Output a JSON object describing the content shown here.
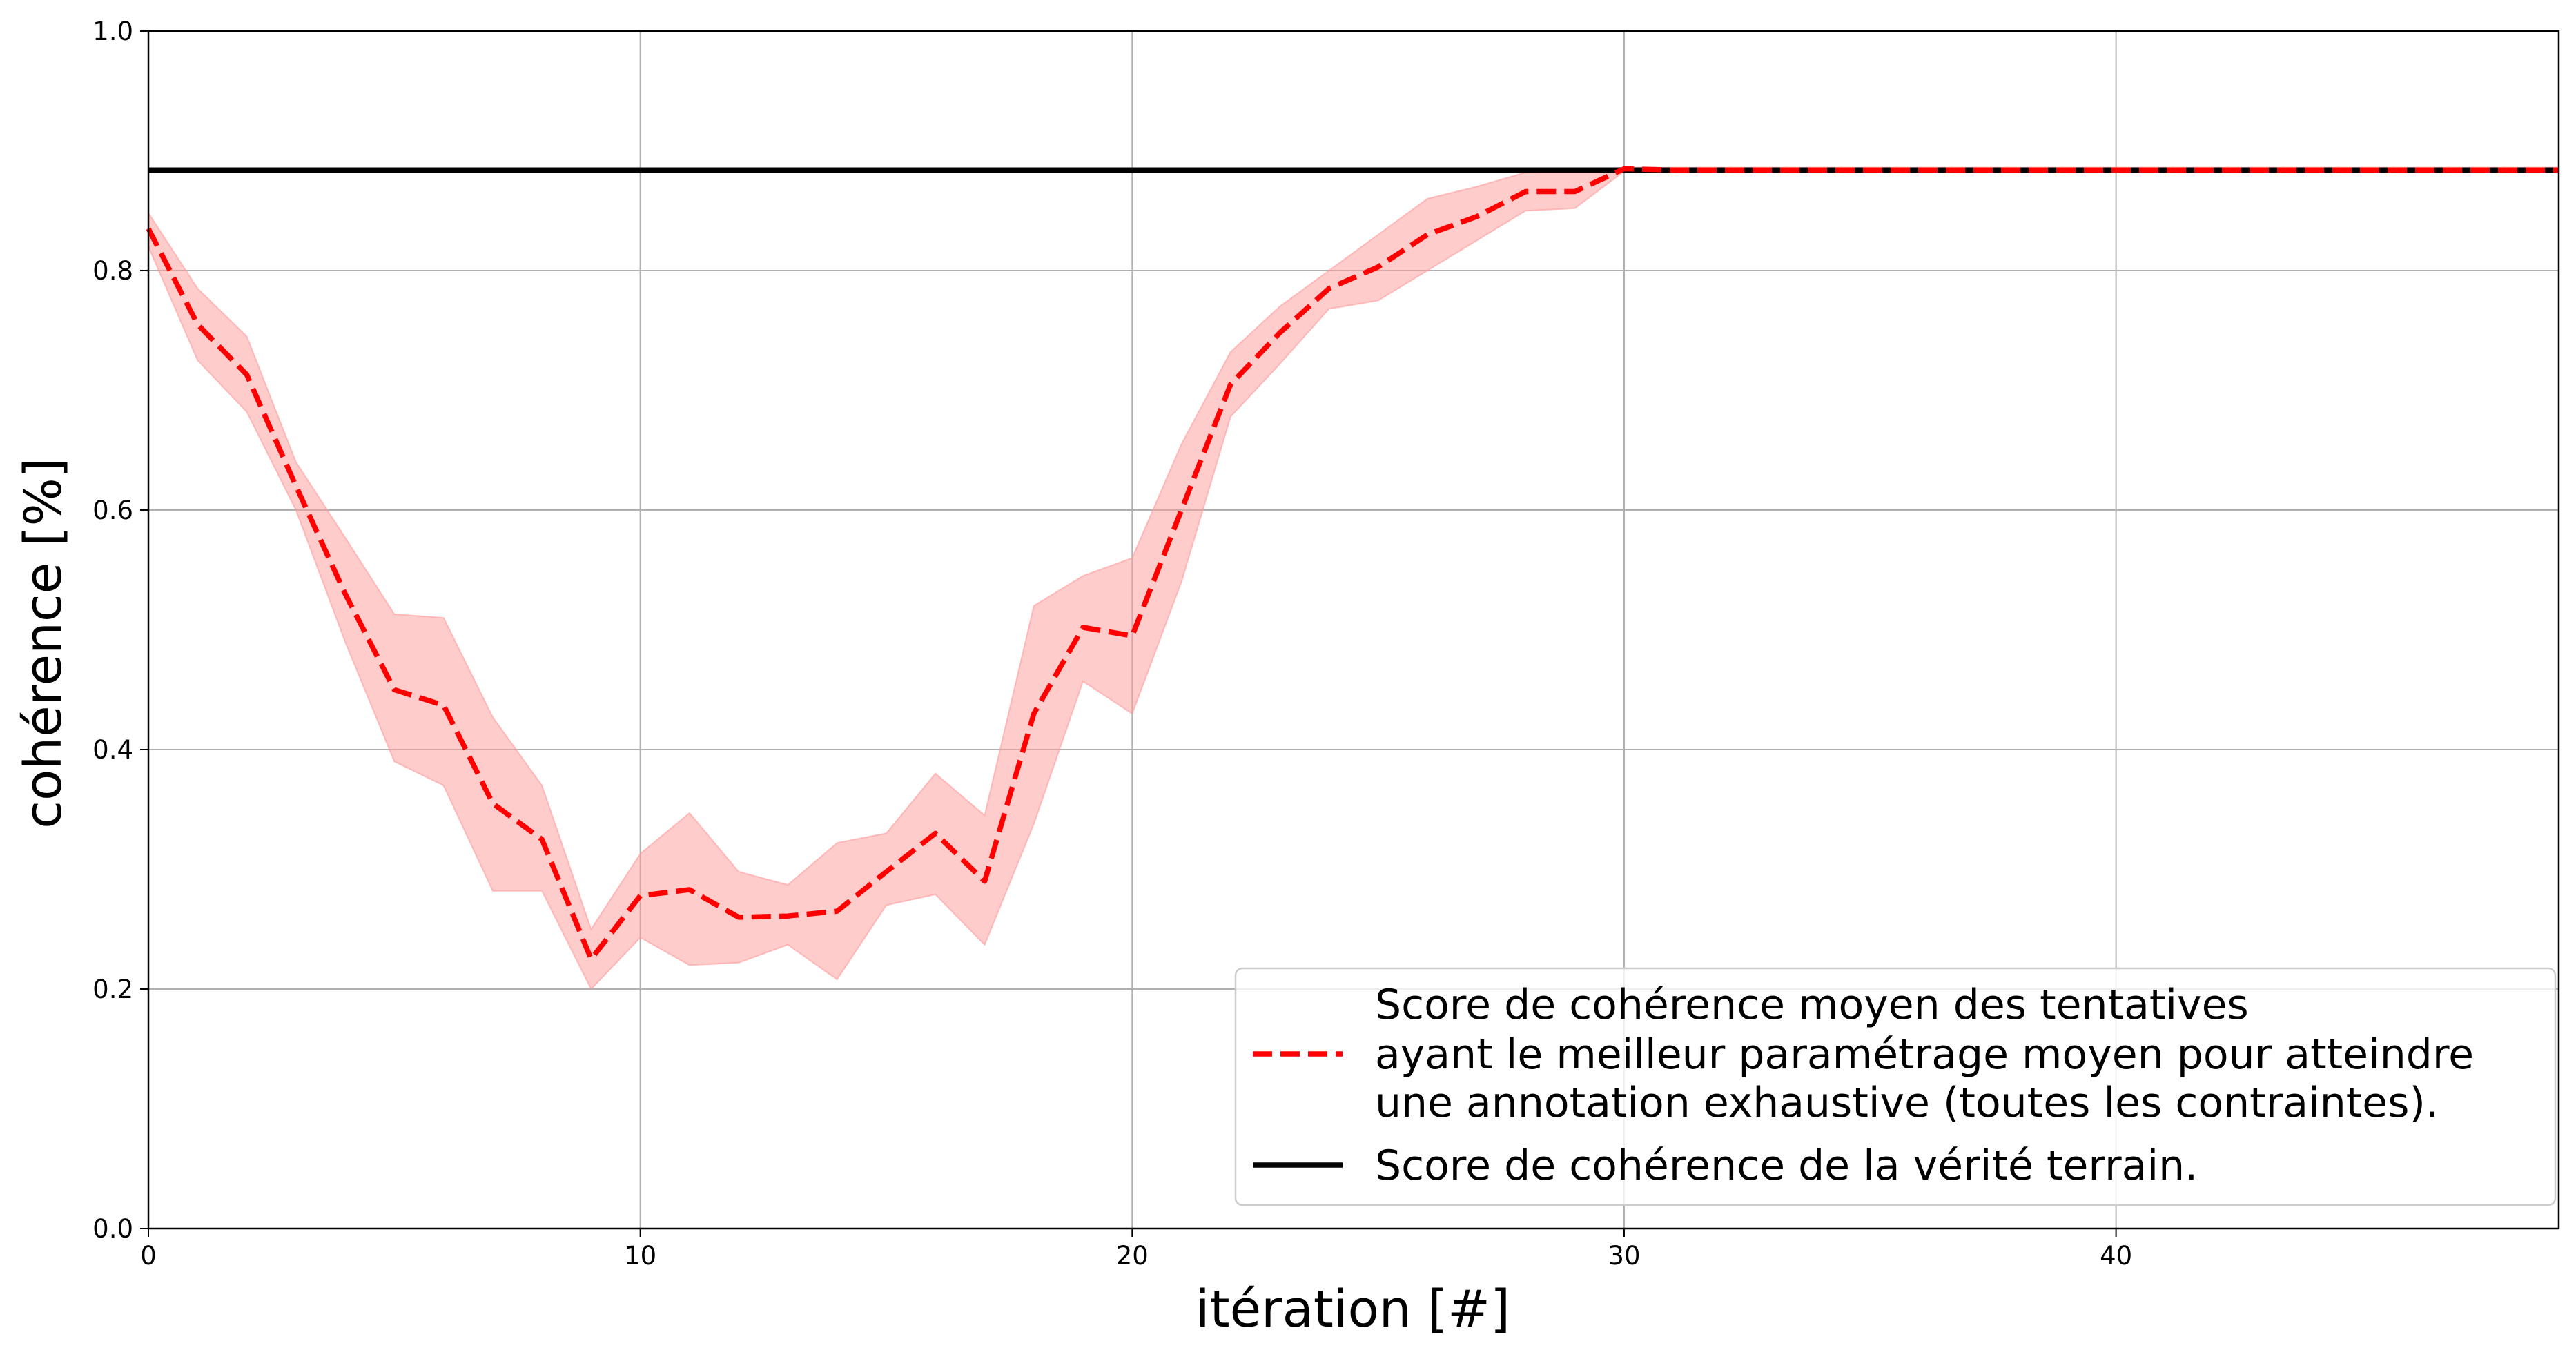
{
  "chart_data": {
    "type": "line",
    "xlabel": "itération [#]",
    "ylabel": "cohérence [%]",
    "xlim": [
      0,
      49
    ],
    "ylim": [
      0.0,
      1.0
    ],
    "x_ticks": [
      "0",
      "10",
      "20",
      "30",
      "40"
    ],
    "x_tick_values": [
      0,
      10,
      20,
      30,
      40
    ],
    "y_ticks": [
      "0.0",
      "0.2",
      "0.4",
      "0.6",
      "0.8",
      "1.0"
    ],
    "y_tick_values": [
      0.0,
      0.2,
      0.4,
      0.6,
      0.8,
      1.0
    ],
    "grid": true,
    "legend_position": "lower-right",
    "series": [
      {
        "name": "Score de cohérence moyen des tentatives ayant le meilleur paramétrage moyen pour atteindre une annotation exhaustive (toutes les contraintes).",
        "legend_lines": [
          "Score de cohérence moyen des tentatives",
          "ayant le meilleur paramétrage moyen pour atteindre",
          "une annotation exhaustive (toutes les contraintes)."
        ],
        "style": "dashed",
        "color": "#ff0000",
        "band_color": "#ff9999",
        "x": [
          0,
          1,
          2,
          3,
          4,
          5,
          6,
          7,
          8,
          9,
          10,
          11,
          12,
          13,
          14,
          15,
          16,
          17,
          18,
          19,
          20,
          21,
          22,
          23,
          24,
          25,
          26,
          27,
          28,
          29,
          30,
          31,
          32,
          33,
          34,
          35,
          36,
          37,
          38,
          39,
          40,
          41,
          42,
          43,
          44,
          45,
          46,
          47,
          48,
          49
        ],
        "values": [
          0.835,
          0.755,
          0.713,
          0.62,
          0.53,
          0.45,
          0.437,
          0.355,
          0.325,
          0.225,
          0.278,
          0.283,
          0.26,
          0.261,
          0.265,
          0.298,
          0.33,
          0.29,
          0.43,
          0.502,
          0.495,
          0.6,
          0.705,
          0.748,
          0.785,
          0.803,
          0.83,
          0.845,
          0.866,
          0.866,
          0.885,
          0.884,
          0.884,
          0.884,
          0.884,
          0.884,
          0.884,
          0.884,
          0.884,
          0.884,
          0.884,
          0.884,
          0.884,
          0.884,
          0.884,
          0.884,
          0.884,
          0.884,
          0.884,
          0.884
        ],
        "lower": [
          0.82,
          0.725,
          0.682,
          0.6,
          0.49,
          0.39,
          0.37,
          0.282,
          0.282,
          0.2,
          0.243,
          0.22,
          0.222,
          0.237,
          0.208,
          0.27,
          0.279,
          0.237,
          0.338,
          0.457,
          0.43,
          0.54,
          0.678,
          0.722,
          0.768,
          0.775,
          0.8,
          0.825,
          0.85,
          0.852,
          0.883,
          0.883,
          0.883,
          0.883,
          0.883,
          0.883,
          0.883,
          0.883,
          0.883,
          0.883,
          0.883,
          0.883,
          0.883,
          0.883,
          0.883,
          0.883,
          0.883,
          0.883,
          0.883,
          0.883
        ],
        "upper": [
          0.848,
          0.785,
          0.745,
          0.64,
          0.577,
          0.513,
          0.51,
          0.427,
          0.37,
          0.25,
          0.313,
          0.347,
          0.298,
          0.287,
          0.322,
          0.33,
          0.38,
          0.345,
          0.52,
          0.545,
          0.56,
          0.655,
          0.732,
          0.77,
          0.8,
          0.83,
          0.86,
          0.87,
          0.882,
          0.883,
          0.886,
          0.886,
          0.886,
          0.886,
          0.886,
          0.886,
          0.886,
          0.886,
          0.886,
          0.886,
          0.886,
          0.886,
          0.886,
          0.886,
          0.886,
          0.886,
          0.886,
          0.886,
          0.886,
          0.886
        ]
      },
      {
        "name": "Score de cohérence de la vérité terrain.",
        "legend_lines": [
          "Score de cohérence de la vérité terrain."
        ],
        "style": "solid",
        "color": "#000000",
        "x": [
          0,
          49
        ],
        "values": [
          0.884,
          0.884
        ]
      }
    ]
  }
}
